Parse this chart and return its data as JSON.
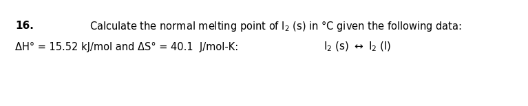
{
  "background_color": "#ffffff",
  "figsize": [
    7.67,
    1.54
  ],
  "dpi": 100,
  "number_text": "16.",
  "number_fontsize": 11,
  "number_fontweight": "bold",
  "line1_text_a": "Calculate the normal melting point of I",
  "line1_sub": "2",
  "line1_text_b": " (s) in °C given the following data:",
  "line1_fontsize": 10.5,
  "line2_text": "ΔH° = 15.52 kJ/mol and ΔS° = 40.1  J/mol-K:",
  "line2_fontsize": 10.5,
  "reaction_I1": "I",
  "reaction_2a": "2",
  "reaction_s": " (s) ",
  "reaction_arrow": "↔",
  "reaction_I2": " I",
  "reaction_2b": "2",
  "reaction_l": " (l)",
  "reaction_fontsize": 11,
  "font_family": "DejaVu Sans"
}
